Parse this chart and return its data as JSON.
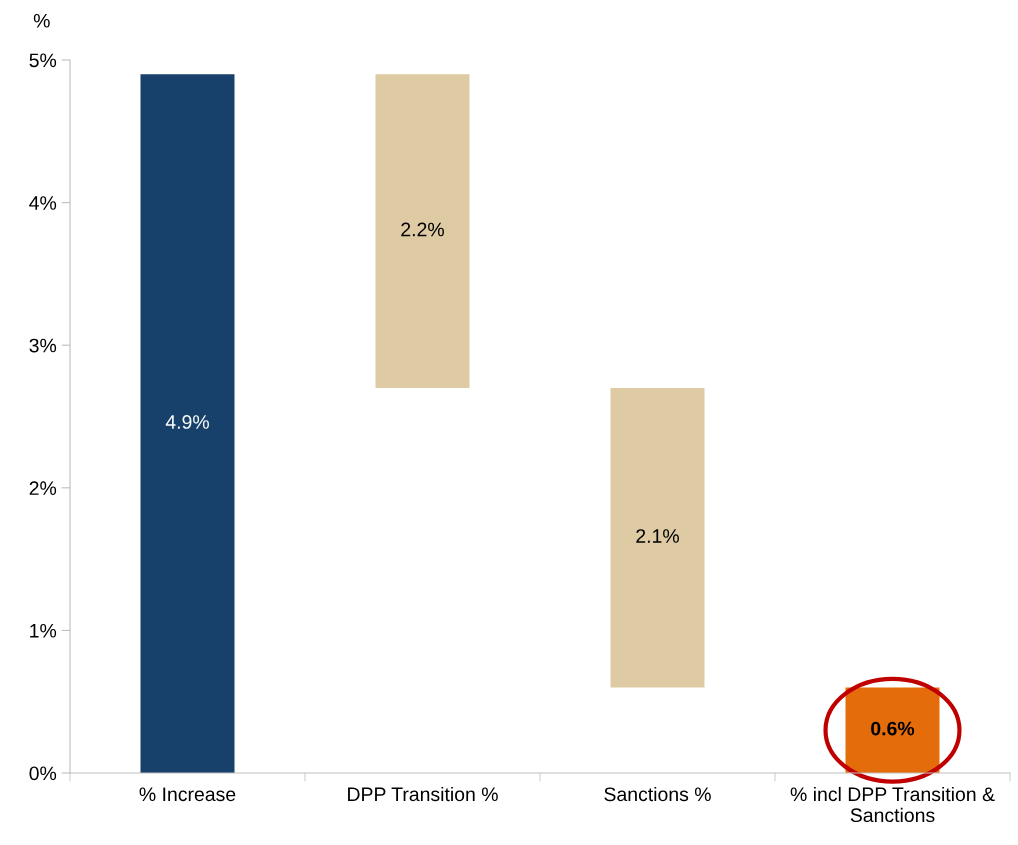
{
  "chart_data": {
    "type": "bar",
    "ylabel": "%",
    "categories": [
      "% Increase",
      "DPP Transition %",
      "Sanctions %",
      "% incl DPP Transition & Sanctions"
    ],
    "values": [
      4.9,
      2.2,
      2.1,
      0.6
    ],
    "base": [
      0,
      2.7,
      0.6,
      0
    ],
    "colors": [
      "#17406a",
      "#decba4",
      "#decba4",
      "#e46c0a"
    ],
    "ylim": [
      0,
      5
    ],
    "yticks": [
      {
        "value": 0,
        "label": "0%"
      },
      {
        "value": 1,
        "label": "1%"
      },
      {
        "value": 2,
        "label": "2%"
      },
      {
        "value": 3,
        "label": "3%"
      },
      {
        "value": 4,
        "label": "4%"
      },
      {
        "value": 5,
        "label": "5%"
      }
    ],
    "value_labels": [
      "4.9%",
      "2.2%",
      "2.1%",
      "0.6%"
    ],
    "grid": false,
    "legend": false
  }
}
